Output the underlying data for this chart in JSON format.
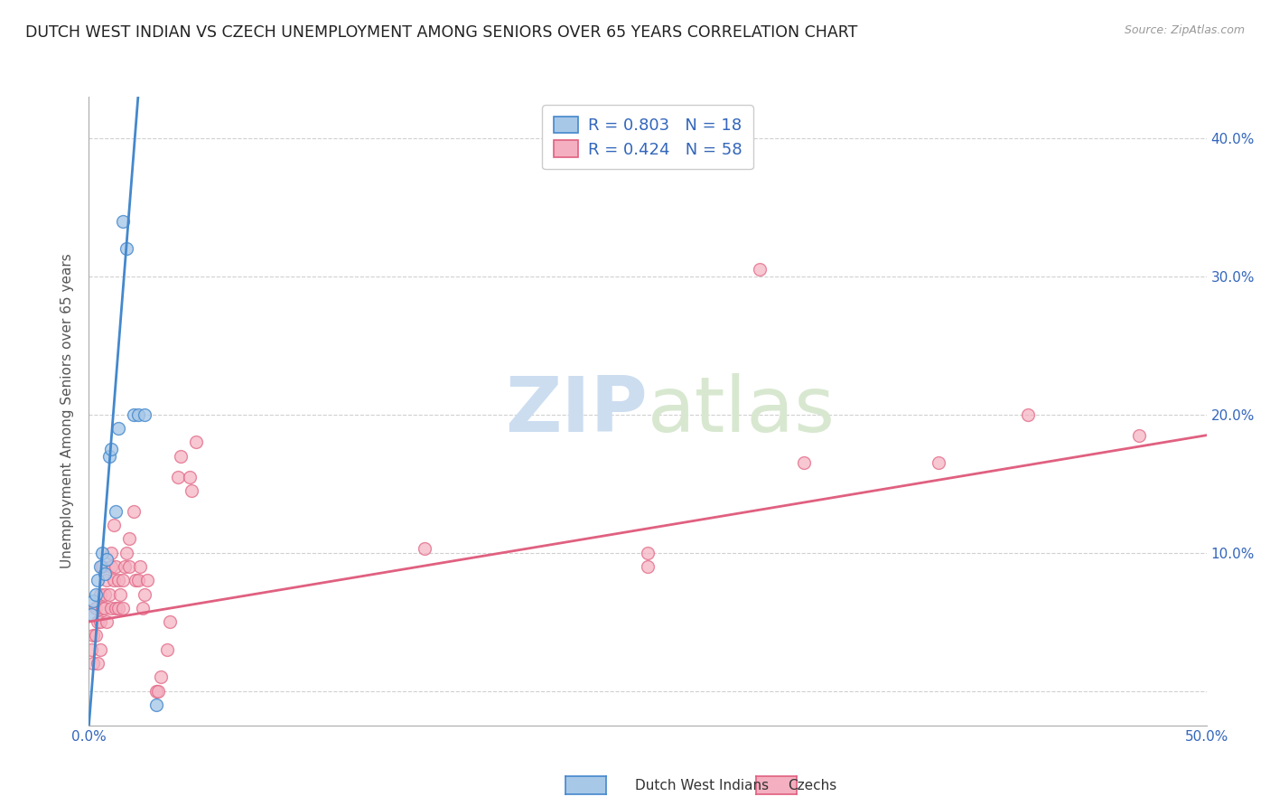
{
  "title": "DUTCH WEST INDIAN VS CZECH UNEMPLOYMENT AMONG SENIORS OVER 65 YEARS CORRELATION CHART",
  "source": "Source: ZipAtlas.com",
  "ylabel": "Unemployment Among Seniors over 65 years",
  "xlim": [
    0.0,
    0.5
  ],
  "ylim": [
    -0.025,
    0.43
  ],
  "xticks": [
    0.0,
    0.1,
    0.2,
    0.3,
    0.4,
    0.5
  ],
  "yticks": [
    0.0,
    0.1,
    0.2,
    0.3,
    0.4
  ],
  "xticklabels": [
    "0.0%",
    "",
    "",
    "",
    "",
    "50.0%"
  ],
  "right_yticklabels": [
    "",
    "10.0%",
    "20.0%",
    "30.0%",
    "40.0%"
  ],
  "dutch_color": "#a8c8e8",
  "czech_color": "#f4b0c0",
  "dutch_line_color": "#4488cc",
  "czech_line_color": "#e06080",
  "legend_color": "#3366bb",
  "dutch_R": "0.803",
  "dutch_N": "18",
  "czech_R": "0.424",
  "czech_N": "58",
  "dutch_label": "Dutch West Indians",
  "czech_label": "Czechs",
  "watermark_zip": "ZIP",
  "watermark_atlas": "atlas",
  "dutch_scatter_x": [
    0.001,
    0.002,
    0.003,
    0.004,
    0.005,
    0.006,
    0.007,
    0.008,
    0.009,
    0.01,
    0.012,
    0.013,
    0.015,
    0.017,
    0.02,
    0.022,
    0.025,
    0.03
  ],
  "dutch_scatter_y": [
    0.055,
    0.065,
    0.07,
    0.08,
    0.09,
    0.1,
    0.085,
    0.095,
    0.17,
    0.175,
    0.13,
    0.19,
    0.34,
    0.32,
    0.2,
    0.2,
    0.2,
    -0.01
  ],
  "czech_scatter_x": [
    0.001,
    0.002,
    0.002,
    0.003,
    0.003,
    0.004,
    0.004,
    0.005,
    0.005,
    0.005,
    0.006,
    0.006,
    0.007,
    0.007,
    0.008,
    0.008,
    0.009,
    0.01,
    0.01,
    0.01,
    0.011,
    0.011,
    0.012,
    0.012,
    0.013,
    0.013,
    0.014,
    0.015,
    0.015,
    0.016,
    0.017,
    0.018,
    0.018,
    0.02,
    0.021,
    0.022,
    0.023,
    0.024,
    0.025,
    0.026,
    0.03,
    0.031,
    0.032,
    0.035,
    0.036,
    0.04,
    0.041,
    0.045,
    0.046,
    0.048,
    0.15,
    0.25,
    0.25,
    0.3,
    0.32,
    0.38,
    0.42,
    0.47
  ],
  "czech_scatter_y": [
    0.03,
    0.02,
    0.04,
    0.04,
    0.06,
    0.02,
    0.05,
    0.03,
    0.05,
    0.07,
    0.06,
    0.09,
    0.07,
    0.06,
    0.05,
    0.08,
    0.07,
    0.06,
    0.09,
    0.1,
    0.08,
    0.12,
    0.06,
    0.09,
    0.06,
    0.08,
    0.07,
    0.08,
    0.06,
    0.09,
    0.1,
    0.09,
    0.11,
    0.13,
    0.08,
    0.08,
    0.09,
    0.06,
    0.07,
    0.08,
    0.0,
    0.0,
    0.01,
    0.03,
    0.05,
    0.155,
    0.17,
    0.155,
    0.145,
    0.18,
    0.103,
    0.1,
    0.09,
    0.305,
    0.165,
    0.165,
    0.2,
    0.185
  ],
  "dutch_trend_x": [
    0.0,
    0.022
  ],
  "dutch_trend_y": [
    -0.025,
    0.43
  ],
  "czech_trend_x": [
    0.0,
    0.5
  ],
  "czech_trend_y": [
    0.05,
    0.185
  ],
  "marker_size": 100,
  "marker_linewidth": 1.0,
  "background_color": "#ffffff",
  "grid_color": "#d0d0d0",
  "title_fontsize": 12.5,
  "axis_label_fontsize": 11,
  "tick_fontsize": 11
}
